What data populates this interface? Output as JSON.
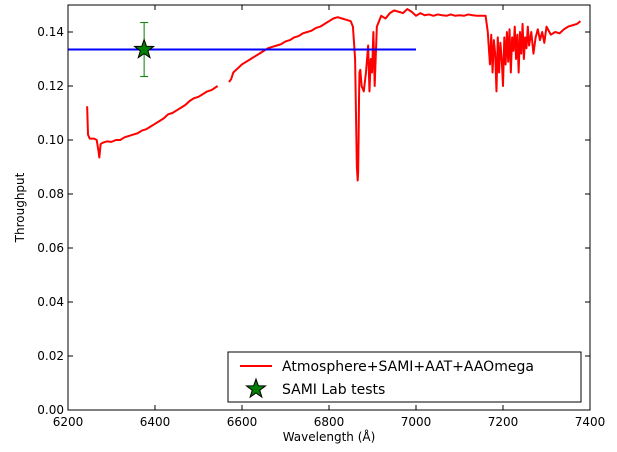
{
  "chart_data": {
    "type": "line",
    "title": "",
    "xlabel": "Wavelength (Å)",
    "ylabel": "Throughput",
    "xlim": [
      6200,
      7400
    ],
    "ylim": [
      0.0,
      0.15
    ],
    "xticks": [
      6200,
      6400,
      6600,
      6800,
      7000,
      7200,
      7400
    ],
    "xtick_labels": [
      "6200",
      "6400",
      "6600",
      "6800",
      "7000",
      "7200",
      "7400"
    ],
    "yticks": [
      0.0,
      0.02,
      0.04,
      0.06,
      0.08,
      0.1,
      0.12,
      0.14
    ],
    "ytick_labels": [
      "0.00",
      "0.02",
      "0.04",
      "0.06",
      "0.08",
      "0.10",
      "0.12",
      "0.14"
    ],
    "grid": false,
    "legend_position": "lower-right",
    "legend": [
      {
        "label": "Atmosphere+SAMI+AAT+AAOmega",
        "marker": "line",
        "color": "#ff0000"
      },
      {
        "label": "SAMI Lab tests",
        "marker": "star",
        "color": "#008000"
      }
    ],
    "series": [
      {
        "name": "Atmosphere+SAMI+AAT+AAOmega",
        "color": "#ff0000",
        "segments": [
          {
            "x": [
              6244,
              6246,
              6250,
              6255,
              6260,
              6266,
              6270,
              6272,
              6275,
              6280,
              6290,
              6300,
              6310,
              6320,
              6330,
              6340,
              6350,
              6360,
              6370,
              6380,
              6390,
              6400,
              6410,
              6420,
              6430,
              6440,
              6450,
              6460,
              6470,
              6480,
              6490,
              6500,
              6510,
              6520,
              6530,
              6544
            ],
            "y": [
              0.1125,
              0.102,
              0.1005,
              0.1005,
              0.1005,
              0.1,
              0.096,
              0.0935,
              0.0985,
              0.099,
              0.0995,
              0.0993,
              0.1,
              0.1,
              0.101,
              0.1015,
              0.102,
              0.1025,
              0.1035,
              0.104,
              0.105,
              0.106,
              0.107,
              0.108,
              0.1095,
              0.11,
              0.111,
              0.112,
              0.113,
              0.1145,
              0.1155,
              0.116,
              0.117,
              0.118,
              0.1185,
              0.12
            ]
          },
          {
            "x": [
              6570,
              6575,
              6580,
              6590,
              6600,
              6610,
              6620,
              6630,
              6640,
              6650,
              6660,
              6670,
              6680,
              6690,
              6700,
              6710,
              6720,
              6730,
              6740,
              6750,
              6760,
              6770,
              6780,
              6790,
              6800,
              6810,
              6820,
              6830,
              6840,
              6850,
              6855,
              6860,
              6862,
              6864,
              6866,
              6867,
              6868,
              6869,
              6870,
              6872,
              6875,
              6880,
              6885,
              6890,
              6893,
              6896,
              6899,
              6902,
              6905,
              6910,
              6915,
              6920,
              6930,
              6940,
              6950,
              6960,
              6970,
              6980,
              6990,
              7000,
              7010,
              7020,
              7030,
              7040,
              7050,
              7060,
              7070,
              7080,
              7090,
              7100,
              7110,
              7120,
              7130,
              7140,
              7150,
              7160,
              7165,
              7170,
              7173,
              7176,
              7179,
              7182,
              7185,
              7188,
              7191,
              7194,
              7197,
              7200,
              7203,
              7206,
              7209,
              7212,
              7215,
              7218,
              7221,
              7224,
              7227,
              7230,
              7233,
              7236,
              7239,
              7242,
              7245,
              7248,
              7251,
              7254,
              7257,
              7260,
              7265,
              7270,
              7275,
              7280,
              7285,
              7290,
              7295,
              7300,
              7310,
              7320,
              7330,
              7340,
              7350,
              7360,
              7370,
              7378
            ],
            "y": [
              0.1215,
              0.1225,
              0.125,
              0.1265,
              0.128,
              0.129,
              0.13,
              0.131,
              0.132,
              0.133,
              0.134,
              0.1345,
              0.135,
              0.1355,
              0.1365,
              0.137,
              0.138,
              0.1385,
              0.1395,
              0.14,
              0.1405,
              0.1415,
              0.142,
              0.143,
              0.144,
              0.145,
              0.1455,
              0.145,
              0.1445,
              0.144,
              0.142,
              0.13,
              0.11,
              0.09,
              0.085,
              0.088,
              0.1,
              0.115,
              0.125,
              0.126,
              0.12,
              0.118,
              0.125,
              0.135,
              0.118,
              0.13,
              0.125,
              0.14,
              0.12,
              0.142,
              0.144,
              0.146,
              0.145,
              0.147,
              0.148,
              0.1475,
              0.147,
              0.1485,
              0.1475,
              0.146,
              0.147,
              0.1462,
              0.1465,
              0.146,
              0.1465,
              0.1462,
              0.146,
              0.1465,
              0.146,
              0.1462,
              0.146,
              0.1465,
              0.1462,
              0.146,
              0.146,
              0.146,
              0.14,
              0.128,
              0.139,
              0.125,
              0.137,
              0.132,
              0.118,
              0.138,
              0.125,
              0.136,
              0.13,
              0.12,
              0.138,
              0.128,
              0.14,
              0.129,
              0.141,
              0.125,
              0.138,
              0.133,
              0.142,
              0.13,
              0.139,
              0.125,
              0.14,
              0.132,
              0.143,
              0.13,
              0.138,
              0.134,
              0.142,
              0.135,
              0.14,
              0.132,
              0.138,
              0.141,
              0.137,
              0.14,
              0.136,
              0.142,
              0.139,
              0.14,
              0.1395,
              0.141,
              0.142,
              0.1425,
              0.143,
              0.144
            ]
          }
        ]
      },
      {
        "name": "",
        "type": "hline",
        "color": "#0000ff",
        "y": 0.1335,
        "x_range": [
          6200,
          7000
        ]
      },
      {
        "name": "SAMI Lab tests",
        "type": "scatter",
        "marker": "star",
        "color": "#008000",
        "points": [
          {
            "x": 6375,
            "y": 0.1335,
            "yerr": 0.01
          }
        ]
      }
    ]
  }
}
